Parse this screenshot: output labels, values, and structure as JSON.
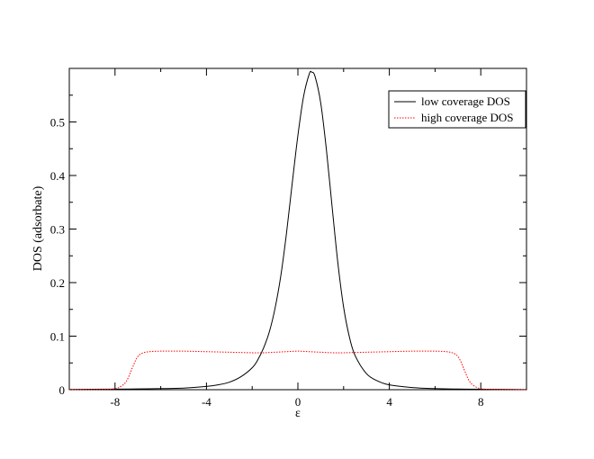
{
  "chart_data": {
    "type": "line",
    "title": "",
    "xlabel": "ε",
    "ylabel": "DOS (adsorbate)",
    "xlim": [
      -10,
      10
    ],
    "ylim": [
      0,
      0.6
    ],
    "x_ticks": [
      -8,
      -4,
      0,
      4,
      8
    ],
    "x_tick_labels": [
      "-8",
      "-4",
      "0",
      "4",
      "8"
    ],
    "y_ticks": [
      0,
      0.1,
      0.2,
      0.3,
      0.4,
      0.5
    ],
    "y_tick_labels": [
      "0",
      "0.1",
      "0.2",
      "0.3",
      "0.4",
      "0.5"
    ],
    "grid": false,
    "legend_position": "top-right",
    "series": [
      {
        "name": "low coverage DOS",
        "color": "#000000",
        "line_style": "solid",
        "x": [
          -10,
          -8,
          -7,
          -6,
          -5,
          -4,
          -3.5,
          -3,
          -2.5,
          -2,
          -1.75,
          -1.5,
          -1.25,
          -1,
          -0.75,
          -0.5,
          -0.25,
          0,
          0.25,
          0.5,
          0.6,
          0.75,
          1,
          1.25,
          1.5,
          1.75,
          2,
          2.25,
          2.5,
          3,
          3.5,
          4,
          5,
          6,
          7,
          8,
          10
        ],
        "y": [
          0.0005,
          0.001,
          0.0015,
          0.002,
          0.003,
          0.006,
          0.009,
          0.014,
          0.024,
          0.041,
          0.056,
          0.078,
          0.108,
          0.152,
          0.212,
          0.292,
          0.385,
          0.475,
          0.548,
          0.59,
          0.593,
          0.585,
          0.535,
          0.447,
          0.34,
          0.236,
          0.154,
          0.099,
          0.064,
          0.03,
          0.016,
          0.009,
          0.004,
          0.002,
          0.0012,
          0.0008,
          0.0003
        ]
      },
      {
        "name": "high coverage DOS",
        "color": "#ff0000",
        "line_style": "dotted",
        "x": [
          -10,
          -8.5,
          -8,
          -7.75,
          -7.5,
          -7.25,
          -7.1,
          -7,
          -6.9,
          -6.75,
          -6.5,
          -6,
          -5,
          -4,
          -3,
          -2,
          -1.5,
          -1,
          -0.5,
          0,
          0.5,
          1,
          1.5,
          2,
          3,
          4,
          5,
          6,
          6.5,
          6.75,
          6.9,
          7,
          7.1,
          7.25,
          7.5,
          7.75,
          8,
          8.5,
          10
        ],
        "y": [
          0,
          0.0005,
          0.002,
          0.006,
          0.016,
          0.04,
          0.055,
          0.062,
          0.066,
          0.069,
          0.071,
          0.072,
          0.072,
          0.071,
          0.07,
          0.069,
          0.069,
          0.07,
          0.071,
          0.072,
          0.071,
          0.07,
          0.069,
          0.069,
          0.07,
          0.071,
          0.072,
          0.072,
          0.071,
          0.069,
          0.066,
          0.062,
          0.055,
          0.04,
          0.016,
          0.006,
          0.002,
          0.0005,
          0
        ]
      }
    ]
  }
}
